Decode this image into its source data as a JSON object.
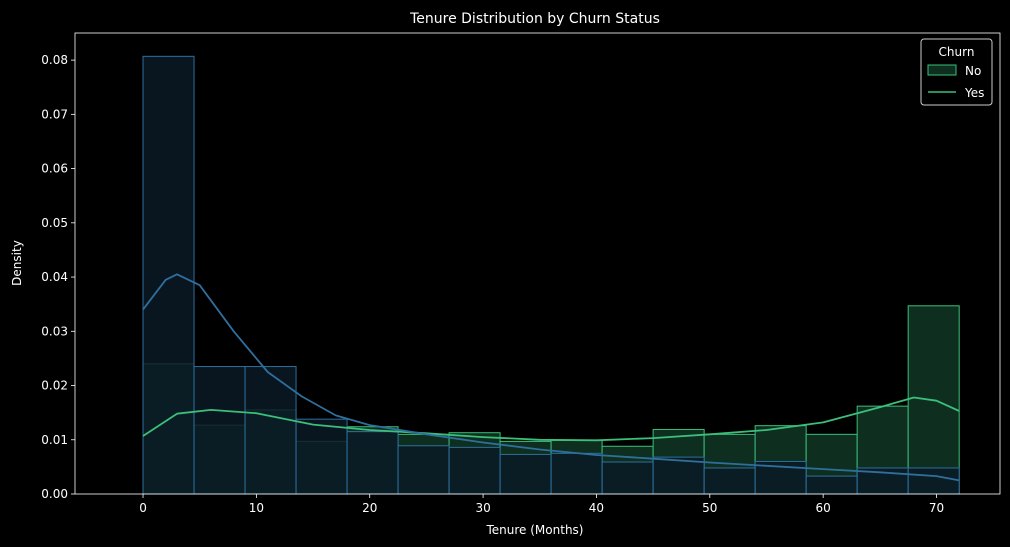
{
  "chart_data": {
    "type": "histogram",
    "title": "Tenure Distribution by Churn Status",
    "xlabel": "Tenure (Months)",
    "ylabel": "Density",
    "xlim": [
      -6,
      75.6
    ],
    "ylim": [
      0,
      0.085
    ],
    "xticks": [
      0,
      10,
      20,
      30,
      40,
      50,
      60,
      70
    ],
    "yticks": [
      0.0,
      0.01,
      0.02,
      0.03,
      0.04,
      0.05,
      0.06,
      0.07,
      0.08
    ],
    "ytick_labels": [
      "0.00",
      "0.01",
      "0.02",
      "0.03",
      "0.04",
      "0.05",
      "0.06",
      "0.07",
      "0.08"
    ],
    "bin_edges": [
      0,
      4.5,
      9,
      13.5,
      18,
      22.5,
      27,
      31.5,
      36,
      40.5,
      45,
      49.5,
      54,
      58.5,
      63,
      67.5,
      72
    ],
    "legend": {
      "title": "Churn",
      "placement": "upper-right"
    },
    "series": [
      {
        "name": "No",
        "color": "#3bbf7a",
        "fill": "#0e2e1f",
        "density": [
          0.024,
          0.0127,
          0.0155,
          0.0097,
          0.0124,
          0.011,
          0.0113,
          0.0097,
          0.0099,
          0.0088,
          0.0119,
          0.011,
          0.0126,
          0.011,
          0.0162,
          0.0347
        ],
        "kde_x": [
          0,
          3,
          6,
          10,
          15,
          20,
          25,
          30,
          35,
          40,
          45,
          50,
          55,
          60,
          65,
          68,
          70,
          72
        ],
        "kde_y": [
          0.0107,
          0.0148,
          0.0155,
          0.0149,
          0.0128,
          0.0118,
          0.0112,
          0.0105,
          0.01,
          0.0099,
          0.0103,
          0.011,
          0.0118,
          0.0132,
          0.016,
          0.0178,
          0.0172,
          0.0153
        ]
      },
      {
        "name": "Yes",
        "color": "#2e6f9e",
        "fill": "#0b1a26",
        "density": [
          0.0807,
          0.0235,
          0.0235,
          0.0138,
          0.0115,
          0.0089,
          0.0086,
          0.0073,
          0.0075,
          0.0059,
          0.0068,
          0.0048,
          0.006,
          0.0033,
          0.0048,
          0.0048
        ],
        "kde_x": [
          0,
          2,
          3,
          5,
          8,
          11,
          14,
          17,
          20,
          25,
          30,
          35,
          40,
          45,
          50,
          55,
          60,
          65,
          70,
          72
        ],
        "kde_y": [
          0.034,
          0.0395,
          0.0405,
          0.0385,
          0.03,
          0.0225,
          0.018,
          0.0145,
          0.0127,
          0.011,
          0.0095,
          0.0082,
          0.0072,
          0.0065,
          0.0058,
          0.0052,
          0.0046,
          0.004,
          0.0033,
          0.0025
        ]
      }
    ]
  }
}
